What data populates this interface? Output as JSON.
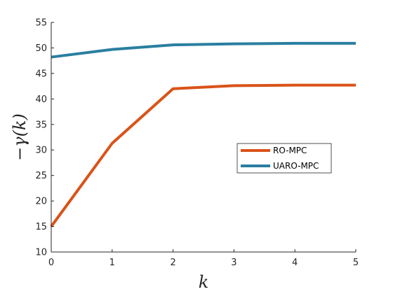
{
  "chart_data": {
    "type": "line",
    "x": [
      0,
      1,
      2,
      3,
      4,
      5
    ],
    "series": [
      {
        "name": "RO-MPC",
        "values": [
          15.0,
          31.3,
          42.0,
          42.6,
          42.7,
          42.7
        ],
        "color": "#d95319"
      },
      {
        "name": "UARO-MPC",
        "values": [
          48.2,
          49.7,
          50.6,
          50.8,
          50.9,
          50.9
        ],
        "color": "#2a7fa0"
      }
    ],
    "xlabel": "k",
    "ylabel": "−γ(k)",
    "xlim": [
      0,
      5
    ],
    "ylim": [
      10,
      55
    ],
    "xticks": [
      "0",
      "1",
      "2",
      "3",
      "4",
      "5"
    ],
    "yticks": [
      "10",
      "15",
      "20",
      "25",
      "30",
      "35",
      "40",
      "45",
      "50",
      "55"
    ],
    "grid": false,
    "legend_position": "right"
  }
}
